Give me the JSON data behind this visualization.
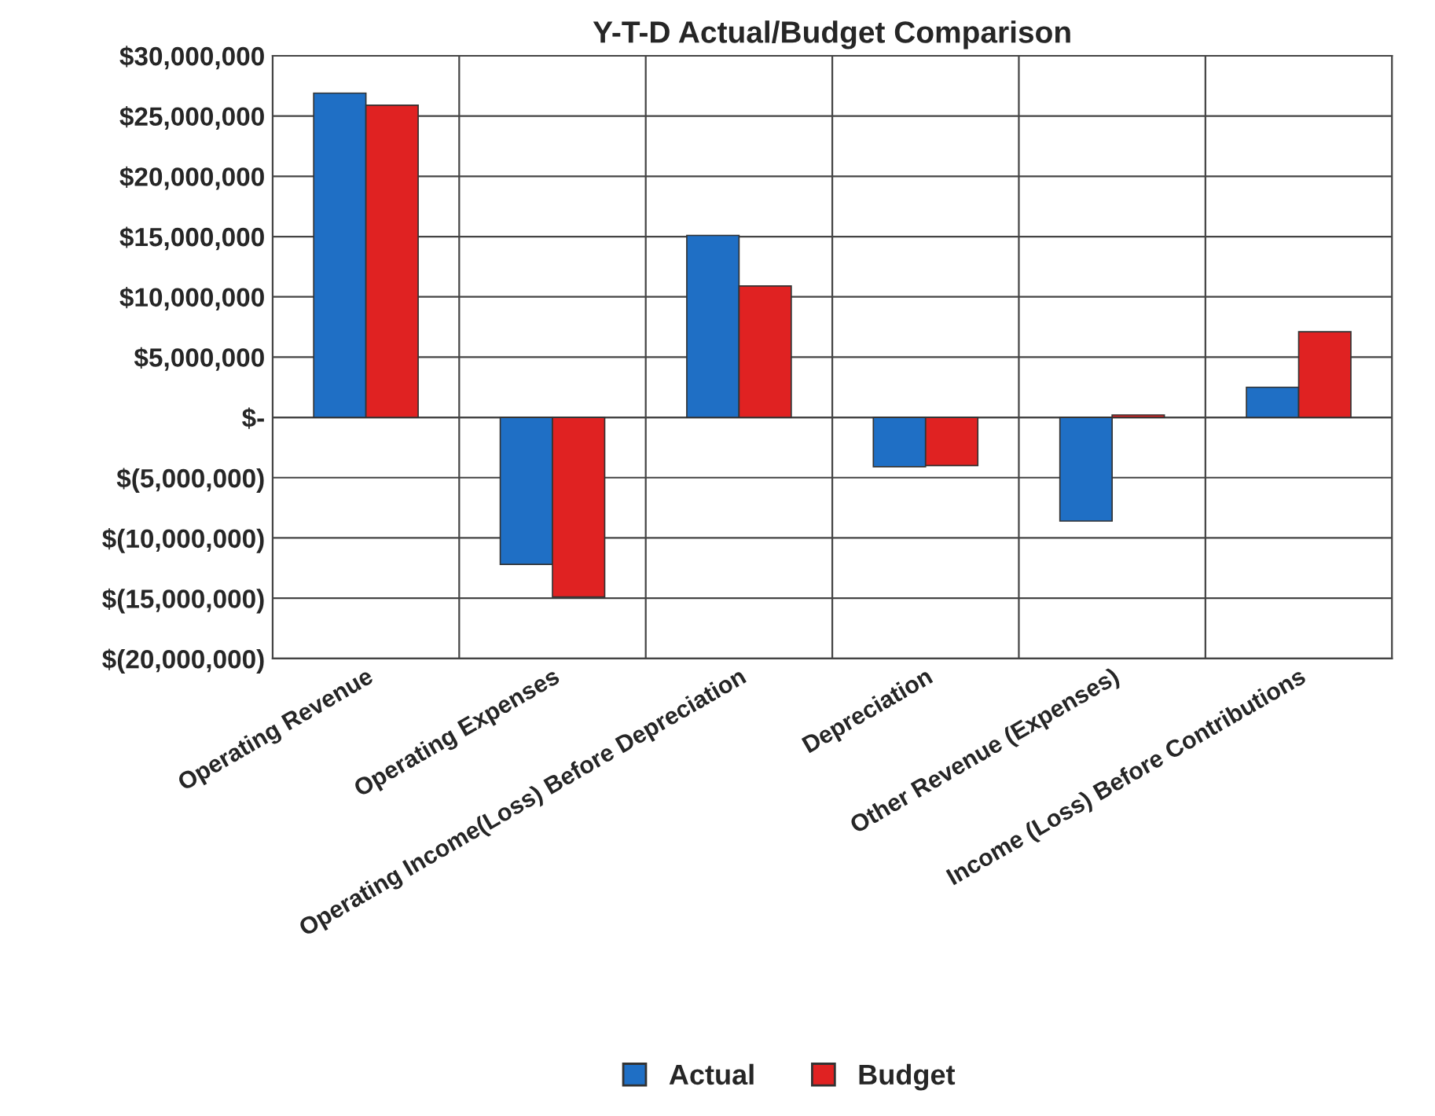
{
  "chart_data": {
    "type": "bar",
    "title": "Y-T-D Actual/Budget Comparison",
    "categories": [
      "Operating Revenue",
      "Operating Expenses",
      "Operating Income(Loss) Before Depreciation",
      "Depreciation",
      "Other Revenue (Expenses)",
      "Income (Loss) Before Contributions"
    ],
    "series": [
      {
        "name": "Actual",
        "color": "#1f6fc5",
        "values": [
          26900000,
          -12200000,
          15100000,
          -4100000,
          -8600000,
          2500000
        ]
      },
      {
        "name": "Budget",
        "color": "#e02222",
        "values": [
          25900000,
          -14900000,
          10900000,
          -4000000,
          200000,
          7100000
        ]
      }
    ],
    "ylim": [
      -20000000,
      30000000
    ],
    "yticks": [
      {
        "value": -20000000,
        "label": "$(20,000,000)"
      },
      {
        "value": -15000000,
        "label": "$(15,000,000)"
      },
      {
        "value": -10000000,
        "label": "$(10,000,000)"
      },
      {
        "value": -5000000,
        "label": "$(5,000,000)"
      },
      {
        "value": 0,
        "label": "$-"
      },
      {
        "value": 5000000,
        "label": "$5,000,000"
      },
      {
        "value": 10000000,
        "label": "$10,000,000"
      },
      {
        "value": 15000000,
        "label": "$15,000,000"
      },
      {
        "value": 20000000,
        "label": "$20,000,000"
      },
      {
        "value": 25000000,
        "label": "$25,000,000"
      },
      {
        "value": 30000000,
        "label": "$30,000,000"
      }
    ],
    "grid": true,
    "legend": "bottom"
  }
}
